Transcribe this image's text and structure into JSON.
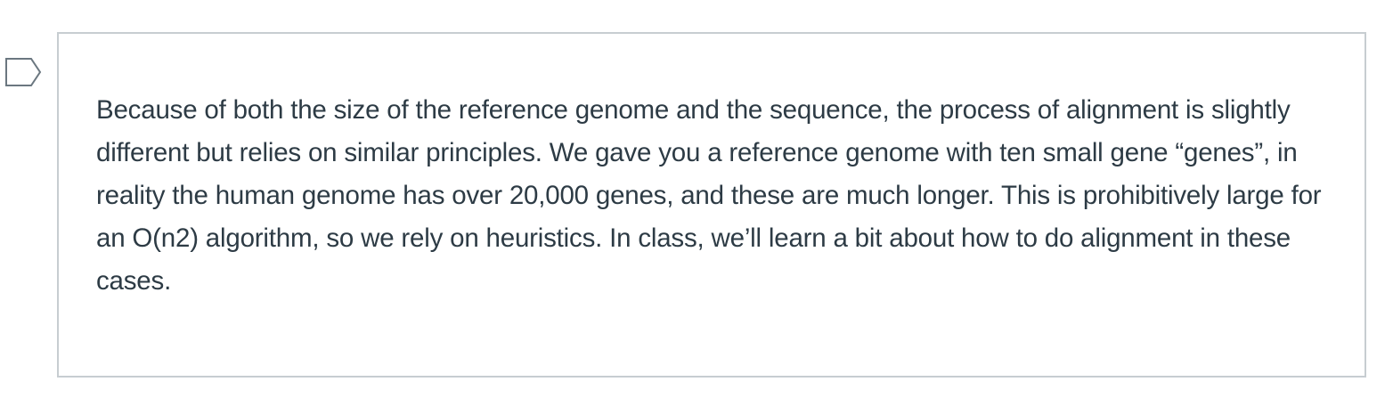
{
  "question": {
    "text": "Because of both the size of the reference genome and the sequence, the process of alignment is slightly different but relies on similar principles. We gave you a reference genome with ten small gene “genes”, in reality the human genome has over 20,000 genes, and these are much longer. This is prohibitively large for an O(n2) algorithm, so we rely on heuristics. In class, we’ll learn a bit about how to do alignment in these cases."
  },
  "flag": {
    "icon": "flag-question-icon",
    "color": "#6b7780"
  },
  "colors": {
    "text": "#2d3b45",
    "border": "#c7cdd1",
    "background": "#ffffff"
  }
}
